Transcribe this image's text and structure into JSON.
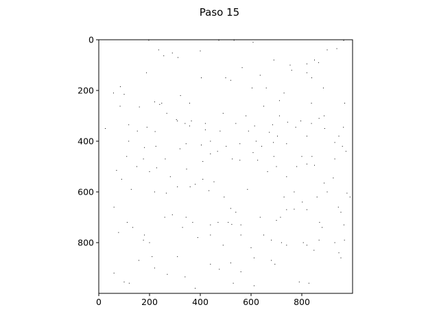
{
  "chart_data": {
    "type": "scatter",
    "title": "Paso 15",
    "xlabel": "",
    "ylabel": "",
    "xlim": [
      0,
      1000
    ],
    "ylim": [
      1000,
      0
    ],
    "y_inverted": true,
    "xticks": [
      0,
      200,
      400,
      600,
      800
    ],
    "yticks": [
      0,
      200,
      400,
      600,
      800
    ],
    "xtick_labels": [
      "0",
      "200",
      "400",
      "600",
      "800"
    ],
    "ytick_labels": [
      "0",
      "200",
      "400",
      "600",
      "800"
    ],
    "grid": false,
    "legend": "none",
    "marker_color": "#000000",
    "background": "#ffffff",
    "points": [
      [
        197,
        2
      ],
      [
        400,
        0
      ],
      [
        473,
        2
      ],
      [
        533,
        2
      ],
      [
        608,
        10
      ],
      [
        965,
        3
      ],
      [
        236,
        40
      ],
      [
        290,
        52
      ],
      [
        256,
        63
      ],
      [
        312,
        70
      ],
      [
        400,
        44
      ],
      [
        690,
        80
      ],
      [
        900,
        40
      ],
      [
        938,
        35
      ],
      [
        820,
        95
      ],
      [
        850,
        80
      ],
      [
        188,
        130
      ],
      [
        565,
        110
      ],
      [
        636,
        140
      ],
      [
        760,
        120
      ],
      [
        820,
        130
      ],
      [
        839,
        150
      ],
      [
        866,
        90
      ],
      [
        500,
        150
      ],
      [
        520,
        160
      ],
      [
        604,
        190
      ],
      [
        660,
        190
      ],
      [
        754,
        100
      ],
      [
        885,
        190
      ],
      [
        58,
        210
      ],
      [
        85,
        185
      ],
      [
        100,
        215
      ],
      [
        220,
        245
      ],
      [
        248,
        250
      ],
      [
        322,
        220
      ],
      [
        358,
        250
      ],
      [
        404,
        150
      ],
      [
        712,
        240
      ],
      [
        730,
        210
      ],
      [
        838,
        250
      ],
      [
        969,
        250
      ],
      [
        84,
        262
      ],
      [
        160,
        265
      ],
      [
        310,
        320
      ],
      [
        365,
        320
      ],
      [
        420,
        330
      ],
      [
        490,
        290
      ],
      [
        540,
        330
      ],
      [
        614,
        340
      ],
      [
        685,
        335
      ],
      [
        838,
        330
      ],
      [
        868,
        310
      ],
      [
        888,
        300
      ],
      [
        26,
        350
      ],
      [
        118,
        335
      ],
      [
        152,
        360
      ],
      [
        190,
        345
      ],
      [
        222,
        362
      ],
      [
        358,
        340
      ],
      [
        420,
        355
      ],
      [
        478,
        360
      ],
      [
        590,
        360
      ],
      [
        672,
        365
      ],
      [
        704,
        380
      ],
      [
        820,
        380
      ],
      [
        890,
        350
      ],
      [
        946,
        380
      ],
      [
        964,
        345
      ],
      [
        118,
        400
      ],
      [
        180,
        425
      ],
      [
        225,
        420
      ],
      [
        344,
        410
      ],
      [
        404,
        415
      ],
      [
        440,
        400
      ],
      [
        502,
        420
      ],
      [
        556,
        410
      ],
      [
        608,
        445
      ],
      [
        688,
        405
      ],
      [
        740,
        410
      ],
      [
        930,
        405
      ],
      [
        960,
        420
      ],
      [
        110,
        460
      ],
      [
        176,
        470
      ],
      [
        228,
        505
      ],
      [
        320,
        430
      ],
      [
        346,
        510
      ],
      [
        410,
        480
      ],
      [
        440,
        450
      ],
      [
        468,
        440
      ],
      [
        526,
        470
      ],
      [
        556,
        475
      ],
      [
        626,
        475
      ],
      [
        665,
        520
      ],
      [
        690,
        460
      ],
      [
        780,
        500
      ],
      [
        820,
        490
      ],
      [
        850,
        495
      ],
      [
        974,
        440
      ],
      [
        70,
        515
      ],
      [
        90,
        550
      ],
      [
        128,
        590
      ],
      [
        262,
        470
      ],
      [
        282,
        540
      ],
      [
        360,
        580
      ],
      [
        410,
        550
      ],
      [
        454,
        560
      ],
      [
        586,
        590
      ],
      [
        700,
        500
      ],
      [
        740,
        540
      ],
      [
        888,
        565
      ],
      [
        924,
        545
      ],
      [
        60,
        660
      ],
      [
        220,
        600
      ],
      [
        266,
        605
      ],
      [
        310,
        580
      ],
      [
        380,
        570
      ],
      [
        434,
        595
      ],
      [
        494,
        620
      ],
      [
        520,
        665
      ],
      [
        540,
        680
      ],
      [
        730,
        620
      ],
      [
        770,
        600
      ],
      [
        802,
        640
      ],
      [
        860,
        620
      ],
      [
        900,
        600
      ],
      [
        978,
        605
      ],
      [
        990,
        620
      ],
      [
        112,
        720
      ],
      [
        134,
        740
      ],
      [
        176,
        790
      ],
      [
        200,
        800
      ],
      [
        260,
        700
      ],
      [
        290,
        690
      ],
      [
        344,
        700
      ],
      [
        370,
        720
      ],
      [
        440,
        730
      ],
      [
        470,
        720
      ],
      [
        510,
        720
      ],
      [
        524,
        728
      ],
      [
        560,
        730
      ],
      [
        636,
        700
      ],
      [
        650,
        770
      ],
      [
        700,
        712
      ],
      [
        716,
        700
      ],
      [
        740,
        670
      ],
      [
        770,
        668
      ],
      [
        820,
        670
      ],
      [
        870,
        720
      ],
      [
        944,
        660
      ],
      [
        954,
        680
      ],
      [
        966,
        730
      ],
      [
        78,
        760
      ],
      [
        180,
        770
      ],
      [
        210,
        855
      ],
      [
        330,
        740
      ],
      [
        390,
        780
      ],
      [
        440,
        770
      ],
      [
        490,
        810
      ],
      [
        560,
        770
      ],
      [
        600,
        820
      ],
      [
        680,
        790
      ],
      [
        720,
        800
      ],
      [
        740,
        810
      ],
      [
        806,
        800
      ],
      [
        820,
        810
      ],
      [
        848,
        830
      ],
      [
        868,
        790
      ],
      [
        930,
        800
      ],
      [
        968,
        790
      ],
      [
        0,
        780
      ],
      [
        60,
        920
      ],
      [
        120,
        960
      ],
      [
        158,
        870
      ],
      [
        220,
        900
      ],
      [
        270,
        925
      ],
      [
        310,
        855
      ],
      [
        340,
        935
      ],
      [
        440,
        885
      ],
      [
        475,
        905
      ],
      [
        520,
        880
      ],
      [
        560,
        915
      ],
      [
        612,
        860
      ],
      [
        680,
        870
      ],
      [
        694,
        885
      ],
      [
        790,
        955
      ],
      [
        828,
        960
      ],
      [
        946,
        840
      ],
      [
        954,
        860
      ],
      [
        100,
        955
      ],
      [
        380,
        980
      ],
      [
        530,
        960
      ],
      [
        612,
        970
      ],
      [
        880,
        740
      ],
      [
        240,
        255
      ],
      [
        268,
        290
      ],
      [
        306,
        315
      ],
      [
        340,
        330
      ],
      [
        580,
        300
      ],
      [
        650,
        262
      ],
      [
        712,
        300
      ],
      [
        744,
        325
      ],
      [
        776,
        345
      ],
      [
        796,
        320
      ],
      [
        620,
        400
      ],
      [
        642,
        420
      ],
      [
        800,
        460
      ],
      [
        840,
        460
      ],
      [
        930,
        470
      ],
      [
        150,
        500
      ],
      [
        200,
        520
      ]
    ]
  }
}
